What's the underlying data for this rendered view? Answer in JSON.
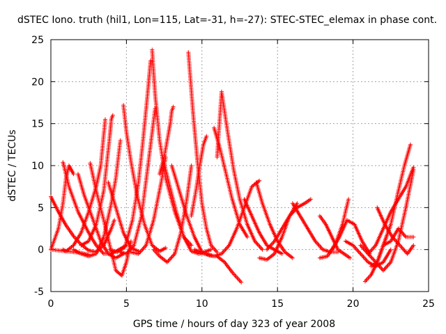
{
  "chart_data": {
    "type": "scatter",
    "title": "dSTEC Iono. truth (hil1, Lon=115, Lat=-31, h=-27): STEC-STEC_elemax in phase cont.",
    "xlabel": "GPS time / hours of day 323 of year 2008",
    "ylabel": "dSTEC  / TECUs",
    "xlim": [
      0,
      25
    ],
    "ylim": [
      -5,
      25
    ],
    "xticks": [
      "0",
      "5",
      "10",
      "15",
      "20",
      "25"
    ],
    "yticks": [
      "-5",
      "0",
      "5",
      "10",
      "15",
      "20",
      "25"
    ],
    "grid": true,
    "marker": "+",
    "color": "#ff0000",
    "series": [
      {
        "x": [
          0.0,
          0.5,
          1.0,
          1.5,
          2.0,
          2.5,
          3.0,
          3.5,
          4.0,
          4.2
        ],
        "y": [
          6.3,
          4.5,
          2.9,
          1.6,
          0.6,
          -0.1,
          -0.3,
          0.5,
          2.5,
          3.5
        ]
      },
      {
        "x": [
          0.0,
          0.5,
          1.0,
          1.5,
          2.0,
          2.5
        ],
        "y": [
          0.0,
          -0.1,
          -0.2,
          -0.3,
          -0.4,
          -0.6
        ]
      },
      {
        "x": [
          0.0,
          0.5,
          0.8,
          1.0,
          1.2,
          1.5
        ],
        "y": [
          0.0,
          2.5,
          5.5,
          8.5,
          10.0,
          9.0
        ]
      },
      {
        "x": [
          0.8,
          1.2,
          1.8,
          2.5,
          3.0,
          3.5,
          4.0,
          4.5,
          5.0
        ],
        "y": [
          10.4,
          7.5,
          4.5,
          2.0,
          0.5,
          -0.5,
          -0.5,
          0.0,
          0.5
        ]
      },
      {
        "x": [
          0.8,
          1.0,
          1.5,
          2.0,
          2.5,
          3.0,
          3.3,
          3.6
        ],
        "y": [
          0.0,
          -0.2,
          0.5,
          2.0,
          4.5,
          7.5,
          10.0,
          15.5
        ]
      },
      {
        "x": [
          1.5,
          2.0,
          2.5,
          3.0,
          3.5,
          4.0,
          4.3,
          4.6
        ],
        "y": [
          0.0,
          -0.5,
          -0.8,
          -0.5,
          1.5,
          5.5,
          8.5,
          13.0
        ]
      },
      {
        "x": [
          1.8,
          2.2,
          2.8,
          3.3,
          3.8,
          4.3,
          4.8
        ],
        "y": [
          9.0,
          6.5,
          3.5,
          1.0,
          -0.5,
          -1.0,
          -0.5
        ]
      },
      {
        "x": [
          2.6,
          3.0,
          3.5,
          3.9,
          4.3,
          4.7,
          5.0,
          5.3
        ],
        "y": [
          10.3,
          7.0,
          3.5,
          0.5,
          -2.5,
          -3.1,
          -1.5,
          1.0
        ]
      },
      {
        "x": [
          2.0,
          2.5,
          3.0,
          3.5,
          3.9,
          4.0,
          4.1
        ],
        "y": [
          0.5,
          1.0,
          3.0,
          7.0,
          13.5,
          15.5,
          16.0
        ]
      },
      {
        "x": [
          3.8,
          4.3,
          4.8,
          5.3,
          5.8
        ],
        "y": [
          8.0,
          5.0,
          2.0,
          0.2,
          -0.2
        ]
      },
      {
        "x": [
          3.9,
          4.4,
          4.9,
          5.4,
          5.8,
          6.1,
          6.4,
          6.6
        ],
        "y": [
          0.0,
          -0.3,
          0.3,
          3.5,
          8.0,
          13.0,
          18.5,
          22.5
        ]
      },
      {
        "x": [
          4.8,
          5.0,
          5.3,
          5.7,
          6.2,
          6.7,
          7.2,
          7.6
        ],
        "y": [
          17.2,
          14.0,
          10.5,
          6.5,
          3.0,
          0.5,
          -0.2,
          0.2
        ]
      },
      {
        "x": [
          4.6,
          5.0,
          5.5,
          6.0,
          6.5,
          6.9
        ],
        "y": [
          -0.3,
          -0.5,
          0.5,
          4.0,
          11.0,
          16.8
        ]
      },
      {
        "x": [
          5.3,
          5.8,
          6.3,
          6.8,
          7.3,
          7.6
        ],
        "y": [
          -0.3,
          -0.5,
          0.5,
          3.5,
          8.0,
          11.0
        ]
      },
      {
        "x": [
          6.7,
          6.9,
          7.2,
          7.6,
          8.2,
          8.8,
          9.3
        ],
        "y": [
          23.8,
          18.5,
          13.0,
          8.5,
          4.5,
          1.5,
          0.5
        ]
      },
      {
        "x": [
          6.8,
          7.2,
          7.7,
          8.2,
          8.6,
          9.0,
          9.3
        ],
        "y": [
          0.0,
          -0.8,
          -1.5,
          -0.5,
          2.0,
          6.0,
          10.0
        ]
      },
      {
        "x": [
          7.2,
          7.5,
          7.8,
          7.9,
          8.0,
          8.1
        ],
        "y": [
          9.0,
          11.0,
          14.0,
          15.0,
          16.5,
          17.0
        ]
      },
      {
        "x": [
          7.4,
          7.8,
          8.3,
          8.8,
          9.3,
          9.8,
          10.3,
          10.6
        ],
        "y": [
          11.0,
          8.0,
          4.5,
          1.5,
          -0.2,
          -0.5,
          -0.2,
          0.0
        ]
      },
      {
        "x": [
          8.0,
          8.5,
          9.0,
          9.5,
          10.0
        ],
        "y": [
          10.0,
          7.0,
          4.0,
          1.5,
          -0.3
        ]
      },
      {
        "x": [
          9.1,
          9.4,
          9.7,
          10.0,
          10.3,
          10.6,
          11.0
        ],
        "y": [
          23.5,
          16.5,
          10.5,
          5.5,
          2.5,
          0.5,
          -0.3
        ]
      },
      {
        "x": [
          9.3,
          9.6,
          9.9,
          10.1,
          10.3
        ],
        "y": [
          4.0,
          7.0,
          10.5,
          12.5,
          13.5
        ]
      },
      {
        "x": [
          9.5,
          10.0,
          10.5,
          11.0,
          11.5,
          12.0,
          12.6
        ],
        "y": [
          0.0,
          -0.4,
          -0.7,
          -0.8,
          -1.5,
          -2.7,
          -3.9
        ]
      },
      {
        "x": [
          10.3,
          10.8,
          11.3,
          11.8,
          12.3,
          12.8,
          13.3,
          13.8
        ],
        "y": [
          -0.5,
          -0.8,
          -0.5,
          0.5,
          2.5,
          5.0,
          7.5,
          8.2
        ]
      },
      {
        "x": [
          11.0,
          11.3,
          11.7,
          12.1,
          12.5,
          13.0,
          13.5,
          14.0
        ],
        "y": [
          11.0,
          18.8,
          14.0,
          9.5,
          6.0,
          3.0,
          1.0,
          0.0
        ]
      },
      {
        "x": [
          10.8,
          11.2,
          11.6,
          12.0,
          12.5,
          13.0
        ],
        "y": [
          14.5,
          12.0,
          9.0,
          6.0,
          3.0,
          1.5
        ]
      },
      {
        "x": [
          13.6,
          14.0,
          14.5,
          15.0,
          15.5,
          16.0
        ],
        "y": [
          8.0,
          5.5,
          3.0,
          1.0,
          -0.3,
          -1.0
        ]
      },
      {
        "x": [
          12.8,
          13.3,
          13.8,
          14.3,
          14.8,
          15.3
        ],
        "y": [
          6.0,
          4.0,
          2.0,
          0.5,
          0.0,
          -0.5
        ]
      },
      {
        "x": [
          13.8,
          14.3,
          14.8,
          15.3,
          15.8,
          16.3
        ],
        "y": [
          -1.0,
          -1.2,
          -0.5,
          1.5,
          4.0,
          5.5
        ]
      },
      {
        "x": [
          14.3,
          14.8,
          15.3,
          15.8,
          16.3,
          16.8,
          17.2
        ],
        "y": [
          0.0,
          1.0,
          2.5,
          4.0,
          5.0,
          5.5,
          6.0
        ]
      },
      {
        "x": [
          16.0,
          16.5,
          17.0,
          17.5,
          18.0,
          18.5,
          19.0
        ],
        "y": [
          5.5,
          4.0,
          2.5,
          1.0,
          0.0,
          -0.3,
          -0.3
        ]
      },
      {
        "x": [
          17.8,
          18.3,
          18.8,
          19.3,
          19.7
        ],
        "y": [
          -1.0,
          -0.8,
          0.5,
          3.0,
          6.0
        ]
      },
      {
        "x": [
          17.8,
          18.2,
          18.6,
          19.0,
          19.4,
          19.8
        ],
        "y": [
          4.0,
          3.0,
          1.5,
          0.0,
          -0.5,
          -1.0
        ]
      },
      {
        "x": [
          18.6,
          19.1,
          19.6,
          20.1,
          20.6,
          21.1
        ],
        "y": [
          0.0,
          1.5,
          3.5,
          3.0,
          1.0,
          -0.5
        ]
      },
      {
        "x": [
          19.5,
          20.0,
          20.5,
          21.0,
          21.5,
          22.0,
          22.5
        ],
        "y": [
          1.0,
          0.5,
          -0.5,
          -1.5,
          -2.0,
          -1.5,
          0.0
        ]
      },
      {
        "x": [
          20.5,
          21.0,
          21.5,
          22.0,
          22.5,
          23.0,
          23.5,
          24.0
        ],
        "y": [
          0.5,
          -0.5,
          -1.5,
          -2.5,
          -1.5,
          1.0,
          5.0,
          9.5
        ]
      },
      {
        "x": [
          20.8,
          21.2,
          21.6,
          22.0,
          22.5
        ],
        "y": [
          -3.8,
          -3.0,
          -1.5,
          0.5,
          3.0
        ]
      },
      {
        "x": [
          21.2,
          21.6,
          22.0,
          22.5,
          23.0,
          23.4,
          23.8
        ],
        "y": [
          -2.0,
          -1.5,
          0.5,
          3.0,
          7.0,
          10.0,
          12.5
        ]
      },
      {
        "x": [
          21.0,
          21.5,
          22.0,
          22.5,
          23.0,
          23.5,
          24.0
        ],
        "y": [
          -0.5,
          0.5,
          2.5,
          4.5,
          6.0,
          7.5,
          9.8
        ]
      },
      {
        "x": [
          21.6,
          22.1,
          22.6,
          23.1,
          23.6,
          24.0
        ],
        "y": [
          5.0,
          3.0,
          1.5,
          0.5,
          -0.5,
          0.5
        ]
      },
      {
        "x": [
          22.0,
          22.5,
          23.0,
          23.5,
          24.0
        ],
        "y": [
          0.5,
          1.0,
          2.5,
          1.5,
          1.5
        ]
      }
    ]
  }
}
